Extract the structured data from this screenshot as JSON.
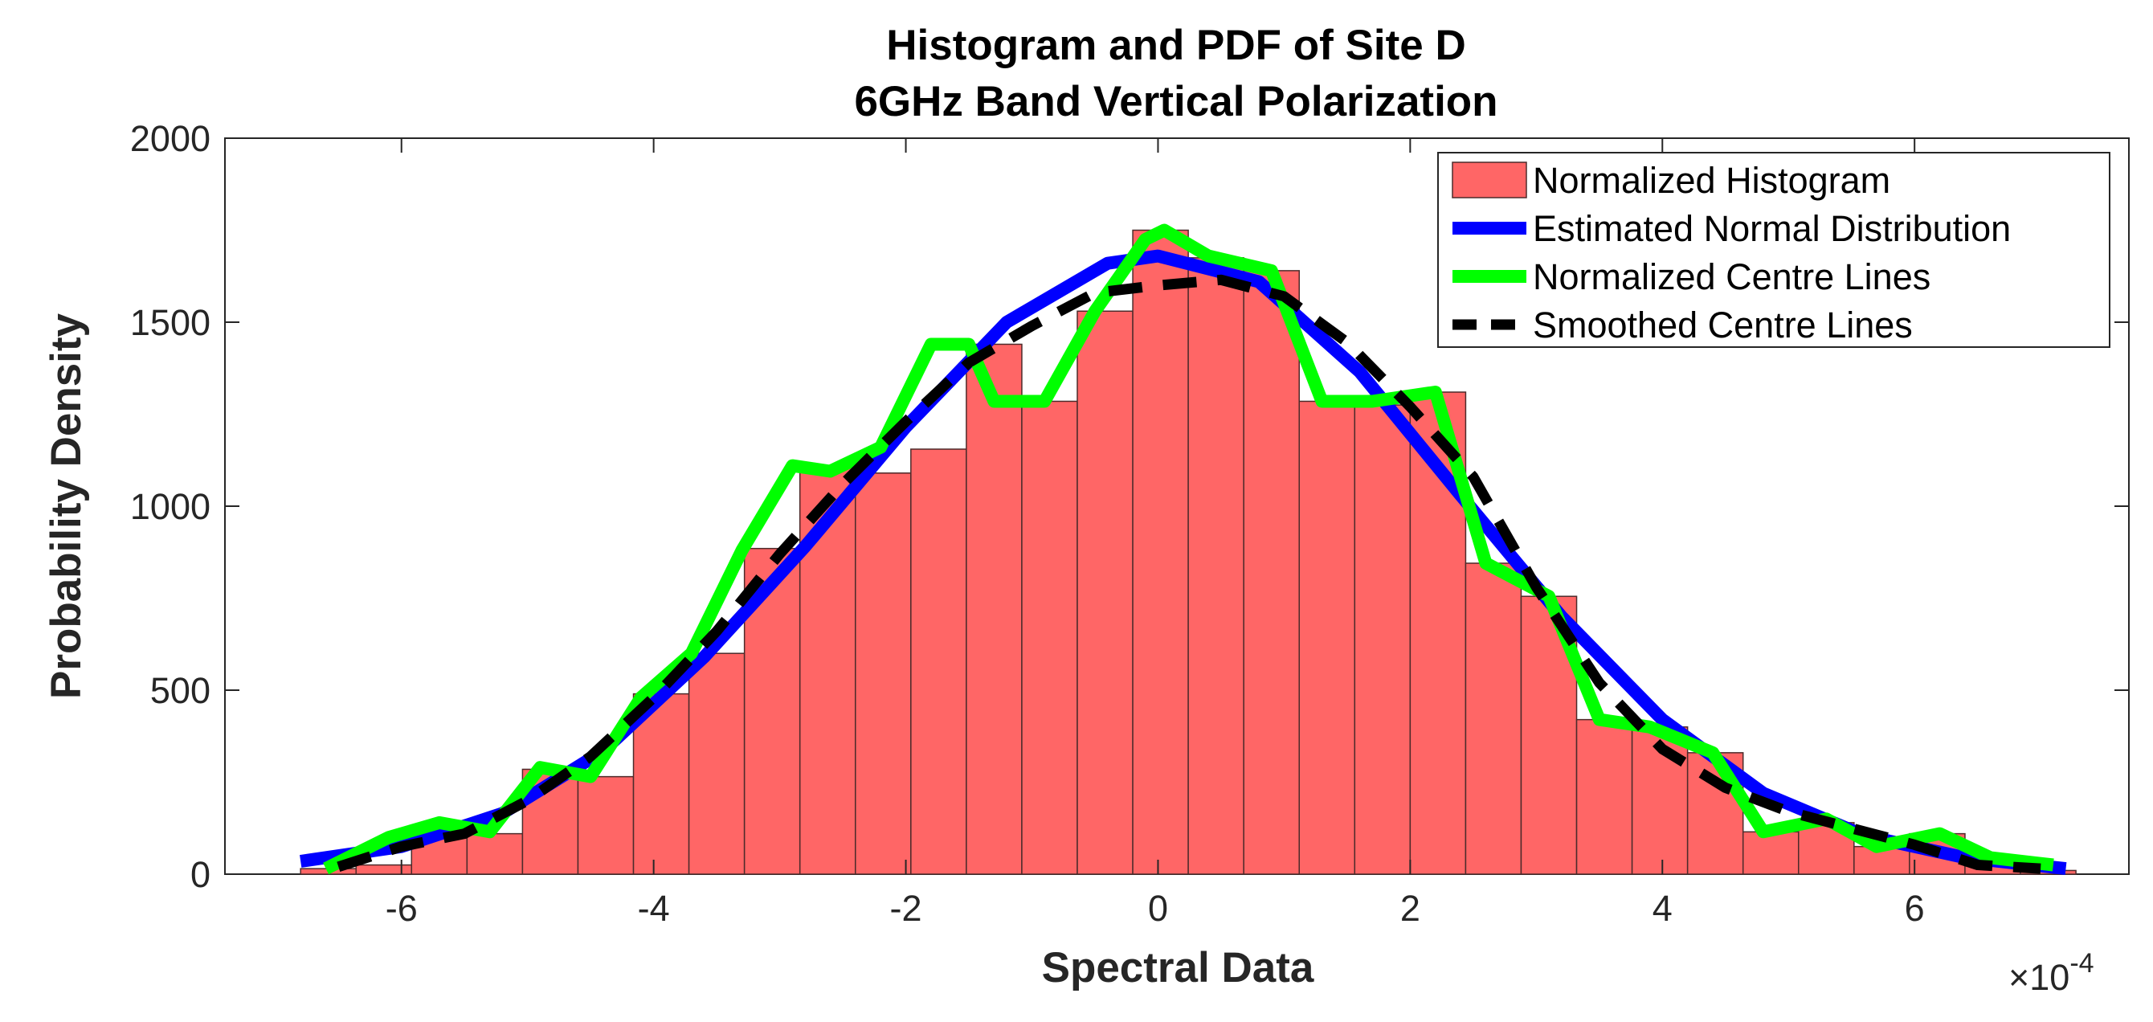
{
  "chart_data": {
    "type": "bar",
    "title": "Histogram and PDF of Site D",
    "subtitle": "6GHz Band Vertical Polarization",
    "xlabel": "Spectral Data",
    "ylabel": "Probability Density",
    "x_exponent_label": "×10",
    "x_exponent_power": "-4",
    "xlim": [
      -7.4,
      7.7
    ],
    "ylim": [
      0,
      2000
    ],
    "xticks": [
      -6,
      -4,
      -2,
      0,
      2,
      4,
      6
    ],
    "xtick_labels": [
      "-6",
      "-4",
      "-2",
      "0",
      "2",
      "4",
      "6"
    ],
    "yticks": [
      0,
      500,
      1000,
      1500,
      2000
    ],
    "ytick_labels": [
      "0",
      "500",
      "1000",
      "1500",
      "2000"
    ],
    "legend_position": "top-right",
    "histogram": {
      "name": "Normalized Histogram",
      "color": "#ff6666",
      "bin_start": -6.8,
      "bin_width": 0.44,
      "values": [
        15,
        25,
        130,
        110,
        285,
        265,
        490,
        600,
        885,
        1110,
        1090,
        1155,
        1440,
        1285,
        1530,
        1750,
        1675,
        1640,
        1285,
        1275,
        1310,
        845,
        755,
        420,
        400,
        330,
        115,
        140,
        75,
        110,
        30,
        10
      ]
    },
    "series": [
      {
        "name": "Estimated Normal Distribution",
        "color": "#0000ff",
        "style": "solid",
        "x": [
          -6.8,
          -6.0,
          -5.2,
          -4.4,
          -3.6,
          -2.8,
          -2.0,
          -1.2,
          -0.4,
          0.0,
          0.8,
          1.6,
          2.4,
          3.2,
          4.0,
          4.8,
          5.6,
          6.4,
          7.2
        ],
        "y": [
          35,
          75,
          165,
          335,
          590,
          890,
          1215,
          1500,
          1660,
          1680,
          1610,
          1365,
          1030,
          700,
          420,
          220,
          105,
          45,
          15
        ]
      },
      {
        "name": "Normalized Centre Lines",
        "color": "#00ff00",
        "style": "solid",
        "x": [
          -6.6,
          -6.1,
          -5.7,
          -5.3,
          -4.9,
          -4.5,
          -4.1,
          -3.7,
          -3.3,
          -2.9,
          -2.6,
          -2.2,
          -1.8,
          -1.5,
          -1.3,
          -0.9,
          -0.5,
          -0.1,
          0.05,
          0.4,
          0.9,
          1.3,
          1.7,
          2.2,
          2.6,
          3.1,
          3.5,
          3.9,
          4.4,
          4.8,
          5.3,
          5.7,
          6.2,
          6.6,
          7.1
        ],
        "y": [
          15,
          100,
          140,
          115,
          290,
          265,
          480,
          600,
          880,
          1110,
          1095,
          1160,
          1440,
          1440,
          1285,
          1285,
          1530,
          1725,
          1750,
          1680,
          1640,
          1285,
          1285,
          1310,
          845,
          755,
          420,
          400,
          330,
          115,
          150,
          75,
          110,
          45,
          25
        ]
      },
      {
        "name": "Smoothed Centre Lines",
        "color": "#000000",
        "style": "dashed",
        "x": [
          -6.5,
          -6.0,
          -5.5,
          -5.0,
          -4.5,
          -4.0,
          -3.5,
          -3.0,
          -2.5,
          -2.0,
          -1.5,
          -1.0,
          -0.5,
          0.0,
          0.5,
          1.0,
          1.5,
          2.0,
          2.5,
          3.0,
          3.5,
          4.0,
          4.5,
          5.0,
          5.5,
          6.0,
          6.5,
          7.0
        ],
        "y": [
          20,
          75,
          110,
          200,
          320,
          480,
          660,
          870,
          1060,
          1230,
          1390,
          1490,
          1580,
          1600,
          1615,
          1570,
          1445,
          1270,
          1080,
          780,
          520,
          340,
          235,
          170,
          125,
          80,
          25,
          15
        ]
      }
    ]
  }
}
